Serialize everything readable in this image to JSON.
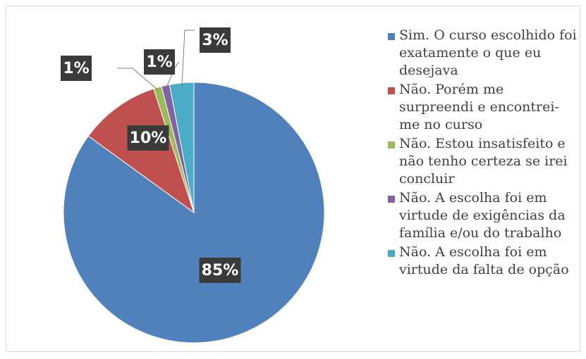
{
  "chart_data": {
    "type": "pie",
    "categories": [
      "Sim. O curso escolhido foi exatamente o que eu desejava",
      "Não. Porém me surpreendi e encontrei-me no curso",
      "Não. Estou insatisfeito e não tenho certeza se irei concluir",
      "Não. A escolha foi em virtude de exigências da família e/ou do trabalho",
      "Não. A escolha foi em virtude da falta de opção"
    ],
    "values": [
      85,
      10,
      1,
      1,
      3
    ],
    "value_labels": [
      "85%",
      "10%",
      "1%",
      "1%",
      "3%"
    ],
    "colors": [
      "#4f81bd",
      "#c0504d",
      "#9bbb59",
      "#8064a2",
      "#4bacc6"
    ],
    "legend": "right"
  }
}
